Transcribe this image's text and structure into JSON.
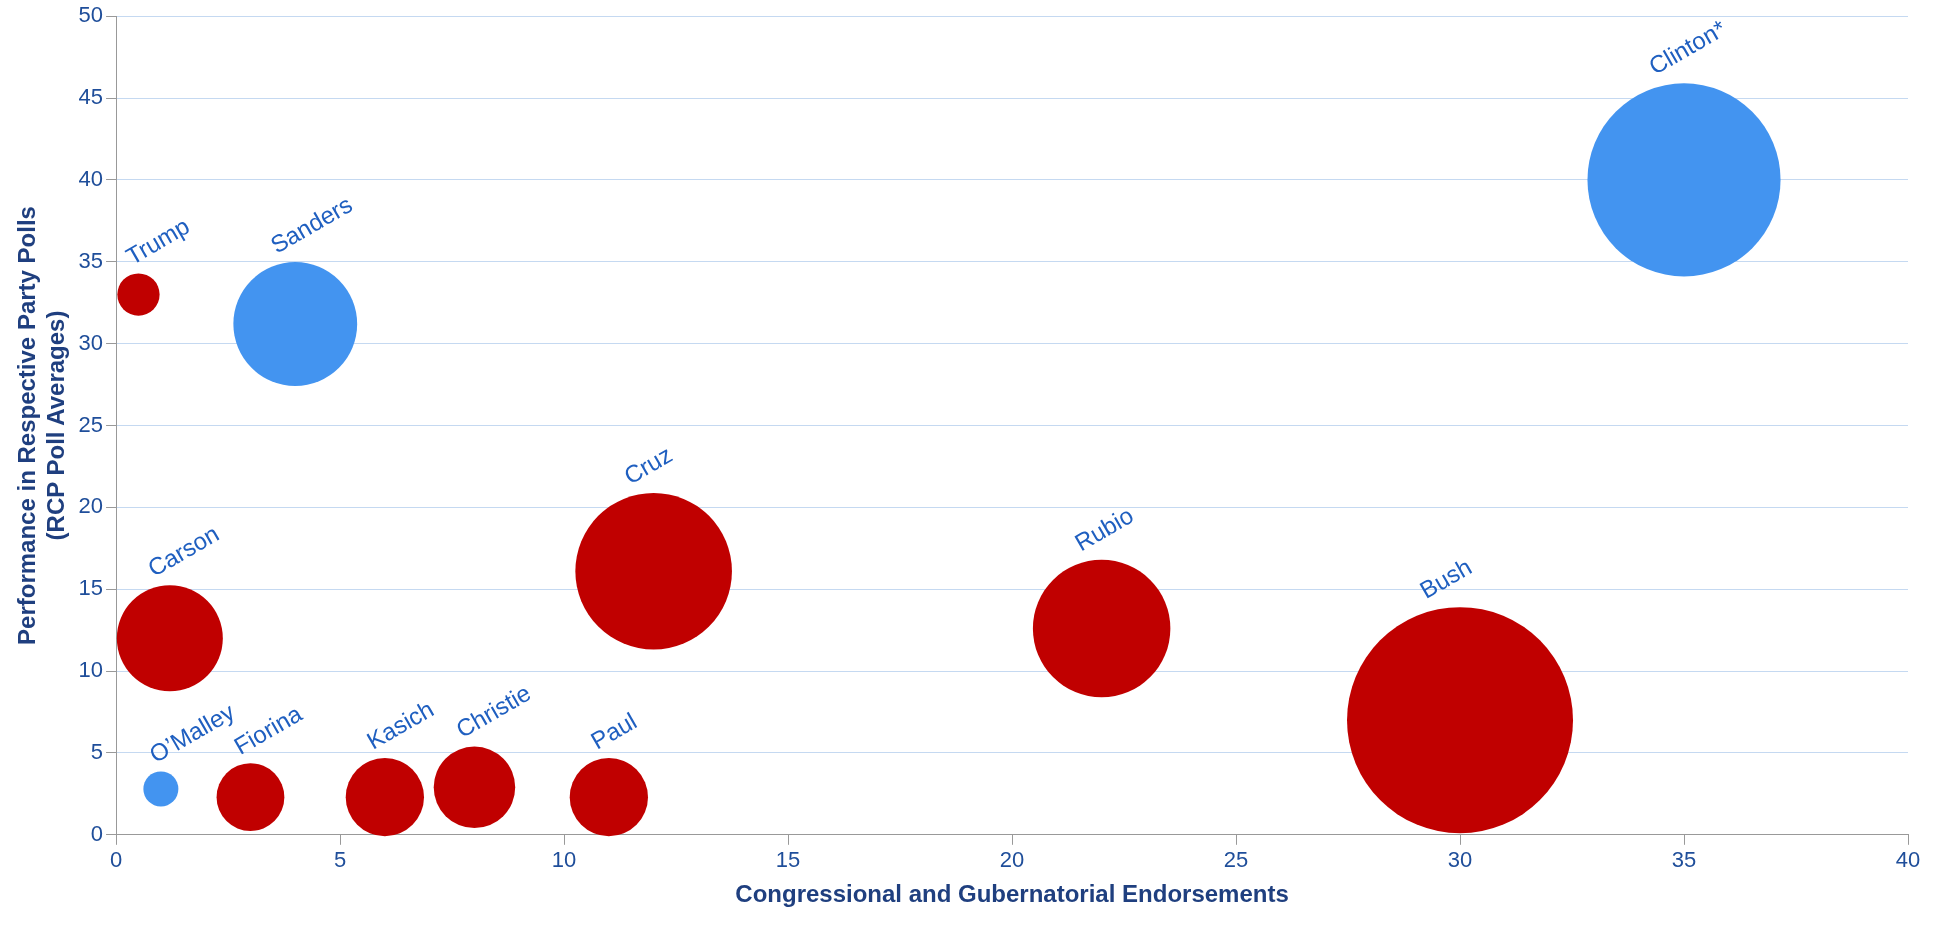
{
  "chart_data": {
    "type": "bubble",
    "xlabel": "Congressional and Gubernatorial Endorsements",
    "ylabel": "Performance in Respective Party Polls\n(RCP Poll Averages)",
    "xlim": [
      0,
      40
    ],
    "xticks": [
      0,
      5,
      10,
      15,
      20,
      25,
      30,
      35,
      40
    ],
    "ylim": [
      0,
      50
    ],
    "yticks": [
      0,
      5,
      10,
      15,
      20,
      25,
      30,
      35,
      40,
      45,
      50
    ],
    "grid": "y",
    "legend": false,
    "series": [
      {
        "name": "Trump",
        "color": "#c00000",
        "x": [
          0.5
        ],
        "values": [
          33
        ],
        "sizes": [
          0.035
        ]
      },
      {
        "name": "Sanders",
        "color": "#4394f0",
        "x": [
          4
        ],
        "values": [
          31.2
        ],
        "sizes": [
          0.3
        ]
      },
      {
        "name": "Clinton*",
        "color": "#4394f0",
        "x": [
          35
        ],
        "values": [
          40
        ],
        "sizes": [
          0.73
        ]
      },
      {
        "name": "Carson",
        "color": "#c00000",
        "x": [
          1.2
        ],
        "values": [
          12
        ],
        "sizes": [
          0.22
        ]
      },
      {
        "name": "Cruz",
        "color": "#c00000",
        "x": [
          12
        ],
        "values": [
          16.1
        ],
        "sizes": [
          0.48
        ]
      },
      {
        "name": "Rubio",
        "color": "#c00000",
        "x": [
          22
        ],
        "values": [
          12.6
        ],
        "sizes": [
          0.37
        ]
      },
      {
        "name": "Bush",
        "color": "#c00000",
        "x": [
          30
        ],
        "values": [
          7
        ],
        "sizes": [
          1
        ]
      },
      {
        "name": "O’Malley",
        "color": "#4394f0",
        "x": [
          1
        ],
        "values": [
          2.8
        ],
        "sizes": [
          0.024
        ]
      },
      {
        "name": "Fiorina",
        "color": "#c00000",
        "x": [
          3
        ],
        "values": [
          2.3
        ],
        "sizes": [
          0.09
        ]
      },
      {
        "name": "Kasich",
        "color": "#c00000",
        "x": [
          6
        ],
        "values": [
          2.3
        ],
        "sizes": [
          0.12
        ]
      },
      {
        "name": "Christie",
        "color": "#c00000",
        "x": [
          8
        ],
        "values": [
          2.9
        ],
        "sizes": [
          0.13
        ]
      },
      {
        "name": "Paul",
        "color": "#c00000",
        "x": [
          11
        ],
        "values": [
          2.3
        ],
        "sizes": [
          0.12
        ]
      }
    ]
  }
}
